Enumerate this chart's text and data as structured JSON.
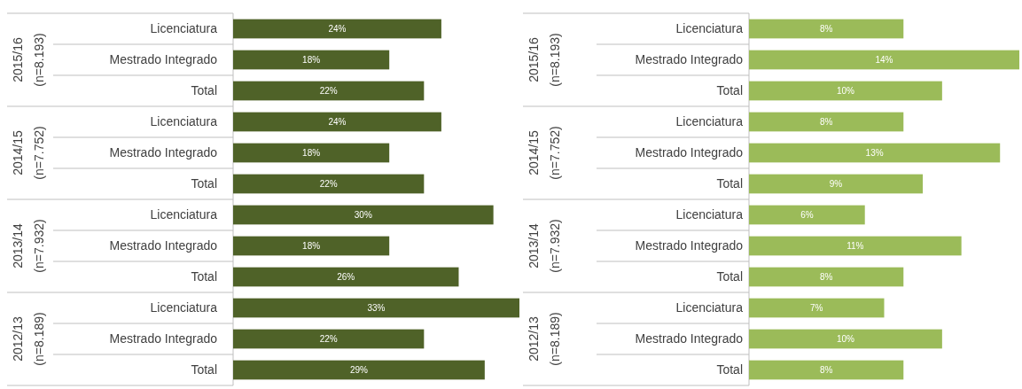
{
  "chart_data": [
    {
      "type": "bar",
      "orientation": "horizontal",
      "categories": [
        "Licenciatura",
        "Mestrado Integrado",
        "Total",
        "Licenciatura",
        "Mestrado Integrado",
        "Total",
        "Licenciatura",
        "Mestrado Integrado",
        "Total",
        "Licenciatura",
        "Mestrado Integrado",
        "Total"
      ],
      "values": [
        24,
        18,
        22,
        24,
        18,
        22,
        30,
        18,
        26,
        33,
        22,
        29
      ],
      "value_labels": [
        "24%",
        "18%",
        "22%",
        "24%",
        "18%",
        "22%",
        "30%",
        "18%",
        "26%",
        "33%",
        "22%",
        "29%"
      ],
      "color": "#4f6228",
      "xlim": [
        0,
        33
      ],
      "tick_labels": "y",
      "annotations": [
        "2015/16\n(n=8.193)",
        "2014/15\n(n=7.752)",
        "2013/14\n(n=7.932)",
        "2012/13\n(n=8.189)"
      ]
    },
    {
      "type": "bar",
      "orientation": "horizontal",
      "categories": [
        "Licenciatura",
        "Mestrado Integrado",
        "Total",
        "Licenciatura",
        "Mestrado Integrado",
        "Total",
        "Licenciatura",
        "Mestrado Integrado",
        "Total",
        "Licenciatura",
        "Mestrado Integrado",
        "Total"
      ],
      "values": [
        8,
        14,
        10,
        8,
        13,
        9,
        6,
        11,
        8,
        7,
        10,
        8
      ],
      "value_labels": [
        "8%",
        "14%",
        "10%",
        "8%",
        "13%",
        "9%",
        "6%",
        "11%",
        "8%",
        "7%",
        "10%",
        "8%"
      ],
      "color": "#9bbb59",
      "xlim": [
        0,
        14
      ],
      "tick_labels": "y",
      "annotations": [
        "2015/16\n(n=8.193)",
        "2014/15\n(n=7.752)",
        "2013/14\n(n=7.932)",
        "2012/13\n(n=8.189)"
      ]
    }
  ]
}
